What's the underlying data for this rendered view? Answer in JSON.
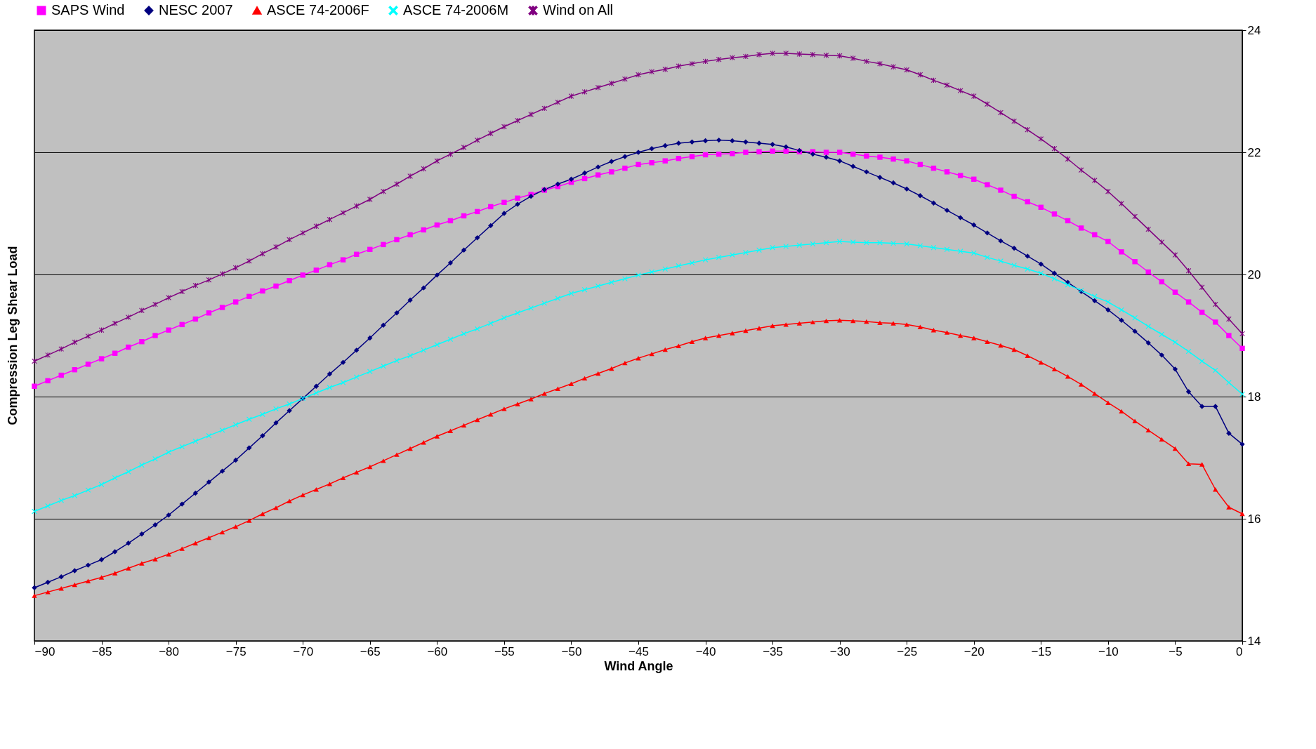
{
  "chart_data": {
    "type": "line",
    "xlabel": "Wind Angle",
    "ylabel": "Compression Leg Shear Load",
    "x": [
      -90,
      -89,
      -88,
      -87,
      -86,
      -85,
      -84,
      -83,
      -82,
      -81,
      -80,
      -79,
      -78,
      -77,
      -76,
      -75,
      -74,
      -73,
      -72,
      -71,
      -70,
      -69,
      -68,
      -67,
      -66,
      -65,
      -64,
      -63,
      -62,
      -61,
      -60,
      -59,
      -58,
      -57,
      -56,
      -55,
      -54,
      -53,
      -52,
      -51,
      -50,
      -49,
      -48,
      -47,
      -46,
      -45,
      -44,
      -43,
      -42,
      -41,
      -40,
      -39,
      -38,
      -37,
      -36,
      -35,
      -34,
      -33,
      -32,
      -31,
      -30,
      -29,
      -28,
      -27,
      -26,
      -25,
      -24,
      -23,
      -22,
      -21,
      -20,
      -19,
      -18,
      -17,
      -16,
      -15,
      -14,
      -13,
      -12,
      -11,
      -10,
      -9,
      -8,
      -7,
      -6,
      -5,
      -4,
      -3,
      -2,
      -1,
      0
    ],
    "series": [
      {
        "name": "SAPS Wind",
        "color": "#ff00ff",
        "marker": "square",
        "values": [
          18.17,
          18.26,
          18.35,
          18.44,
          18.53,
          18.62,
          18.71,
          18.81,
          18.9,
          19.0,
          19.09,
          19.18,
          19.27,
          19.37,
          19.46,
          19.55,
          19.64,
          19.73,
          19.81,
          19.9,
          19.99,
          20.07,
          20.16,
          20.24,
          20.33,
          20.41,
          20.49,
          20.57,
          20.65,
          20.73,
          20.81,
          20.88,
          20.96,
          21.03,
          21.11,
          21.18,
          21.25,
          21.31,
          21.38,
          21.44,
          21.51,
          21.57,
          21.63,
          21.68,
          21.74,
          21.8,
          21.83,
          21.86,
          21.9,
          21.93,
          21.96,
          21.97,
          21.98,
          22.0,
          22.01,
          22.02,
          22.02,
          22.01,
          22.01,
          22.0,
          22.0,
          21.97,
          21.94,
          21.92,
          21.89,
          21.86,
          21.8,
          21.74,
          21.68,
          21.62,
          21.56,
          21.47,
          21.38,
          21.28,
          21.19,
          21.1,
          20.99,
          20.88,
          20.76,
          20.65,
          20.54,
          20.37,
          20.21,
          20.04,
          19.88,
          19.71,
          19.55,
          19.38,
          19.22,
          19.0,
          18.79
        ]
      },
      {
        "name": "NESC 2007",
        "color": "#000080",
        "marker": "diamond",
        "values": [
          14.87,
          14.96,
          15.05,
          15.15,
          15.24,
          15.33,
          15.46,
          15.6,
          15.75,
          15.9,
          16.06,
          16.24,
          16.42,
          16.6,
          16.78,
          16.96,
          17.16,
          17.36,
          17.57,
          17.77,
          17.97,
          18.17,
          18.37,
          18.56,
          18.76,
          18.96,
          19.17,
          19.37,
          19.58,
          19.78,
          19.99,
          20.19,
          20.4,
          20.6,
          20.8,
          21.0,
          21.15,
          21.28,
          21.39,
          21.48,
          21.56,
          21.66,
          21.76,
          21.85,
          21.93,
          22.0,
          22.06,
          22.11,
          22.15,
          22.17,
          22.19,
          22.2,
          22.19,
          22.17,
          22.15,
          22.13,
          22.09,
          22.03,
          21.97,
          21.92,
          21.86,
          21.77,
          21.68,
          21.59,
          21.5,
          21.4,
          21.29,
          21.17,
          21.05,
          20.93,
          20.81,
          20.68,
          20.55,
          20.43,
          20.3,
          20.17,
          20.02,
          19.87,
          19.72,
          19.57,
          19.42,
          19.25,
          19.07,
          18.88,
          18.68,
          18.45,
          18.08,
          17.84,
          17.84,
          17.4,
          17.22
        ]
      },
      {
        "name": "ASCE 74-2006F",
        "color": "#ff0000",
        "marker": "triangle",
        "values": [
          14.74,
          14.8,
          14.86,
          14.92,
          14.98,
          15.04,
          15.11,
          15.19,
          15.27,
          15.34,
          15.42,
          15.51,
          15.6,
          15.69,
          15.78,
          15.87,
          15.97,
          16.08,
          16.18,
          16.29,
          16.39,
          16.48,
          16.57,
          16.67,
          16.76,
          16.85,
          16.95,
          17.05,
          17.15,
          17.25,
          17.35,
          17.44,
          17.53,
          17.62,
          17.71,
          17.8,
          17.88,
          17.96,
          18.05,
          18.13,
          18.21,
          18.3,
          18.38,
          18.46,
          18.55,
          18.63,
          18.7,
          18.77,
          18.83,
          18.9,
          18.96,
          19.0,
          19.04,
          19.08,
          19.12,
          19.16,
          19.18,
          19.2,
          19.22,
          19.24,
          19.25,
          19.24,
          19.23,
          19.21,
          19.2,
          19.18,
          19.14,
          19.09,
          19.05,
          19.0,
          18.96,
          18.9,
          18.84,
          18.77,
          18.67,
          18.56,
          18.45,
          18.33,
          18.2,
          18.05,
          17.9,
          17.76,
          17.6,
          17.45,
          17.3,
          17.15,
          16.9,
          16.89,
          16.48,
          16.19,
          16.08
        ]
      },
      {
        "name": "ASCE 74-2006M",
        "color": "#00ffff",
        "marker": "cross",
        "values": [
          16.12,
          16.21,
          16.3,
          16.38,
          16.47,
          16.56,
          16.67,
          16.77,
          16.88,
          16.98,
          17.09,
          17.18,
          17.27,
          17.36,
          17.45,
          17.54,
          17.63,
          17.71,
          17.8,
          17.88,
          17.97,
          18.06,
          18.15,
          18.23,
          18.32,
          18.41,
          18.5,
          18.59,
          18.67,
          18.76,
          18.85,
          18.94,
          19.03,
          19.11,
          19.2,
          19.29,
          19.37,
          19.45,
          19.53,
          19.61,
          19.69,
          19.75,
          19.81,
          19.87,
          19.93,
          19.99,
          20.04,
          20.09,
          20.14,
          20.19,
          20.24,
          20.28,
          20.32,
          20.36,
          20.4,
          20.44,
          20.46,
          20.48,
          20.5,
          20.52,
          20.54,
          20.53,
          20.52,
          20.52,
          20.51,
          20.5,
          20.47,
          20.44,
          20.41,
          20.38,
          20.35,
          20.28,
          20.22,
          20.15,
          20.09,
          20.02,
          19.93,
          19.83,
          19.74,
          19.64,
          19.55,
          19.42,
          19.29,
          19.15,
          19.02,
          18.89,
          18.74,
          18.58,
          18.43,
          18.23,
          18.04
        ]
      },
      {
        "name": "Wind on All",
        "color": "#800080",
        "marker": "star",
        "values": [
          18.58,
          18.68,
          18.78,
          18.89,
          18.99,
          19.09,
          19.2,
          19.3,
          19.41,
          19.51,
          19.62,
          19.72,
          19.82,
          19.91,
          20.01,
          20.11,
          20.22,
          20.34,
          20.45,
          20.57,
          20.68,
          20.79,
          20.9,
          21.01,
          21.12,
          21.23,
          21.36,
          21.48,
          21.61,
          21.73,
          21.86,
          21.97,
          22.08,
          22.2,
          22.31,
          22.42,
          22.52,
          22.62,
          22.72,
          22.82,
          22.92,
          22.99,
          23.06,
          23.13,
          23.2,
          23.27,
          23.32,
          23.36,
          23.41,
          23.45,
          23.49,
          23.52,
          23.55,
          23.57,
          23.6,
          23.62,
          23.62,
          23.61,
          23.6,
          23.59,
          23.58,
          23.54,
          23.49,
          23.45,
          23.4,
          23.35,
          23.27,
          23.18,
          23.1,
          23.01,
          22.92,
          22.79,
          22.65,
          22.51,
          22.37,
          22.22,
          22.06,
          21.89,
          21.71,
          21.54,
          21.36,
          21.16,
          20.95,
          20.74,
          20.53,
          20.32,
          20.06,
          19.79,
          19.51,
          19.27,
          19.03
        ]
      }
    ],
    "xlim": [
      -90,
      0
    ],
    "xticks": [
      -90,
      -85,
      -80,
      -75,
      -70,
      -65,
      -60,
      -55,
      -50,
      -45,
      -40,
      -35,
      -30,
      -25,
      -20,
      -15,
      -10,
      -5,
      0
    ],
    "ylim": [
      14,
      24
    ],
    "yticks": [
      14,
      16,
      18,
      20,
      22,
      24
    ],
    "grid": "y",
    "legend": "top",
    "line_style": "solid"
  }
}
